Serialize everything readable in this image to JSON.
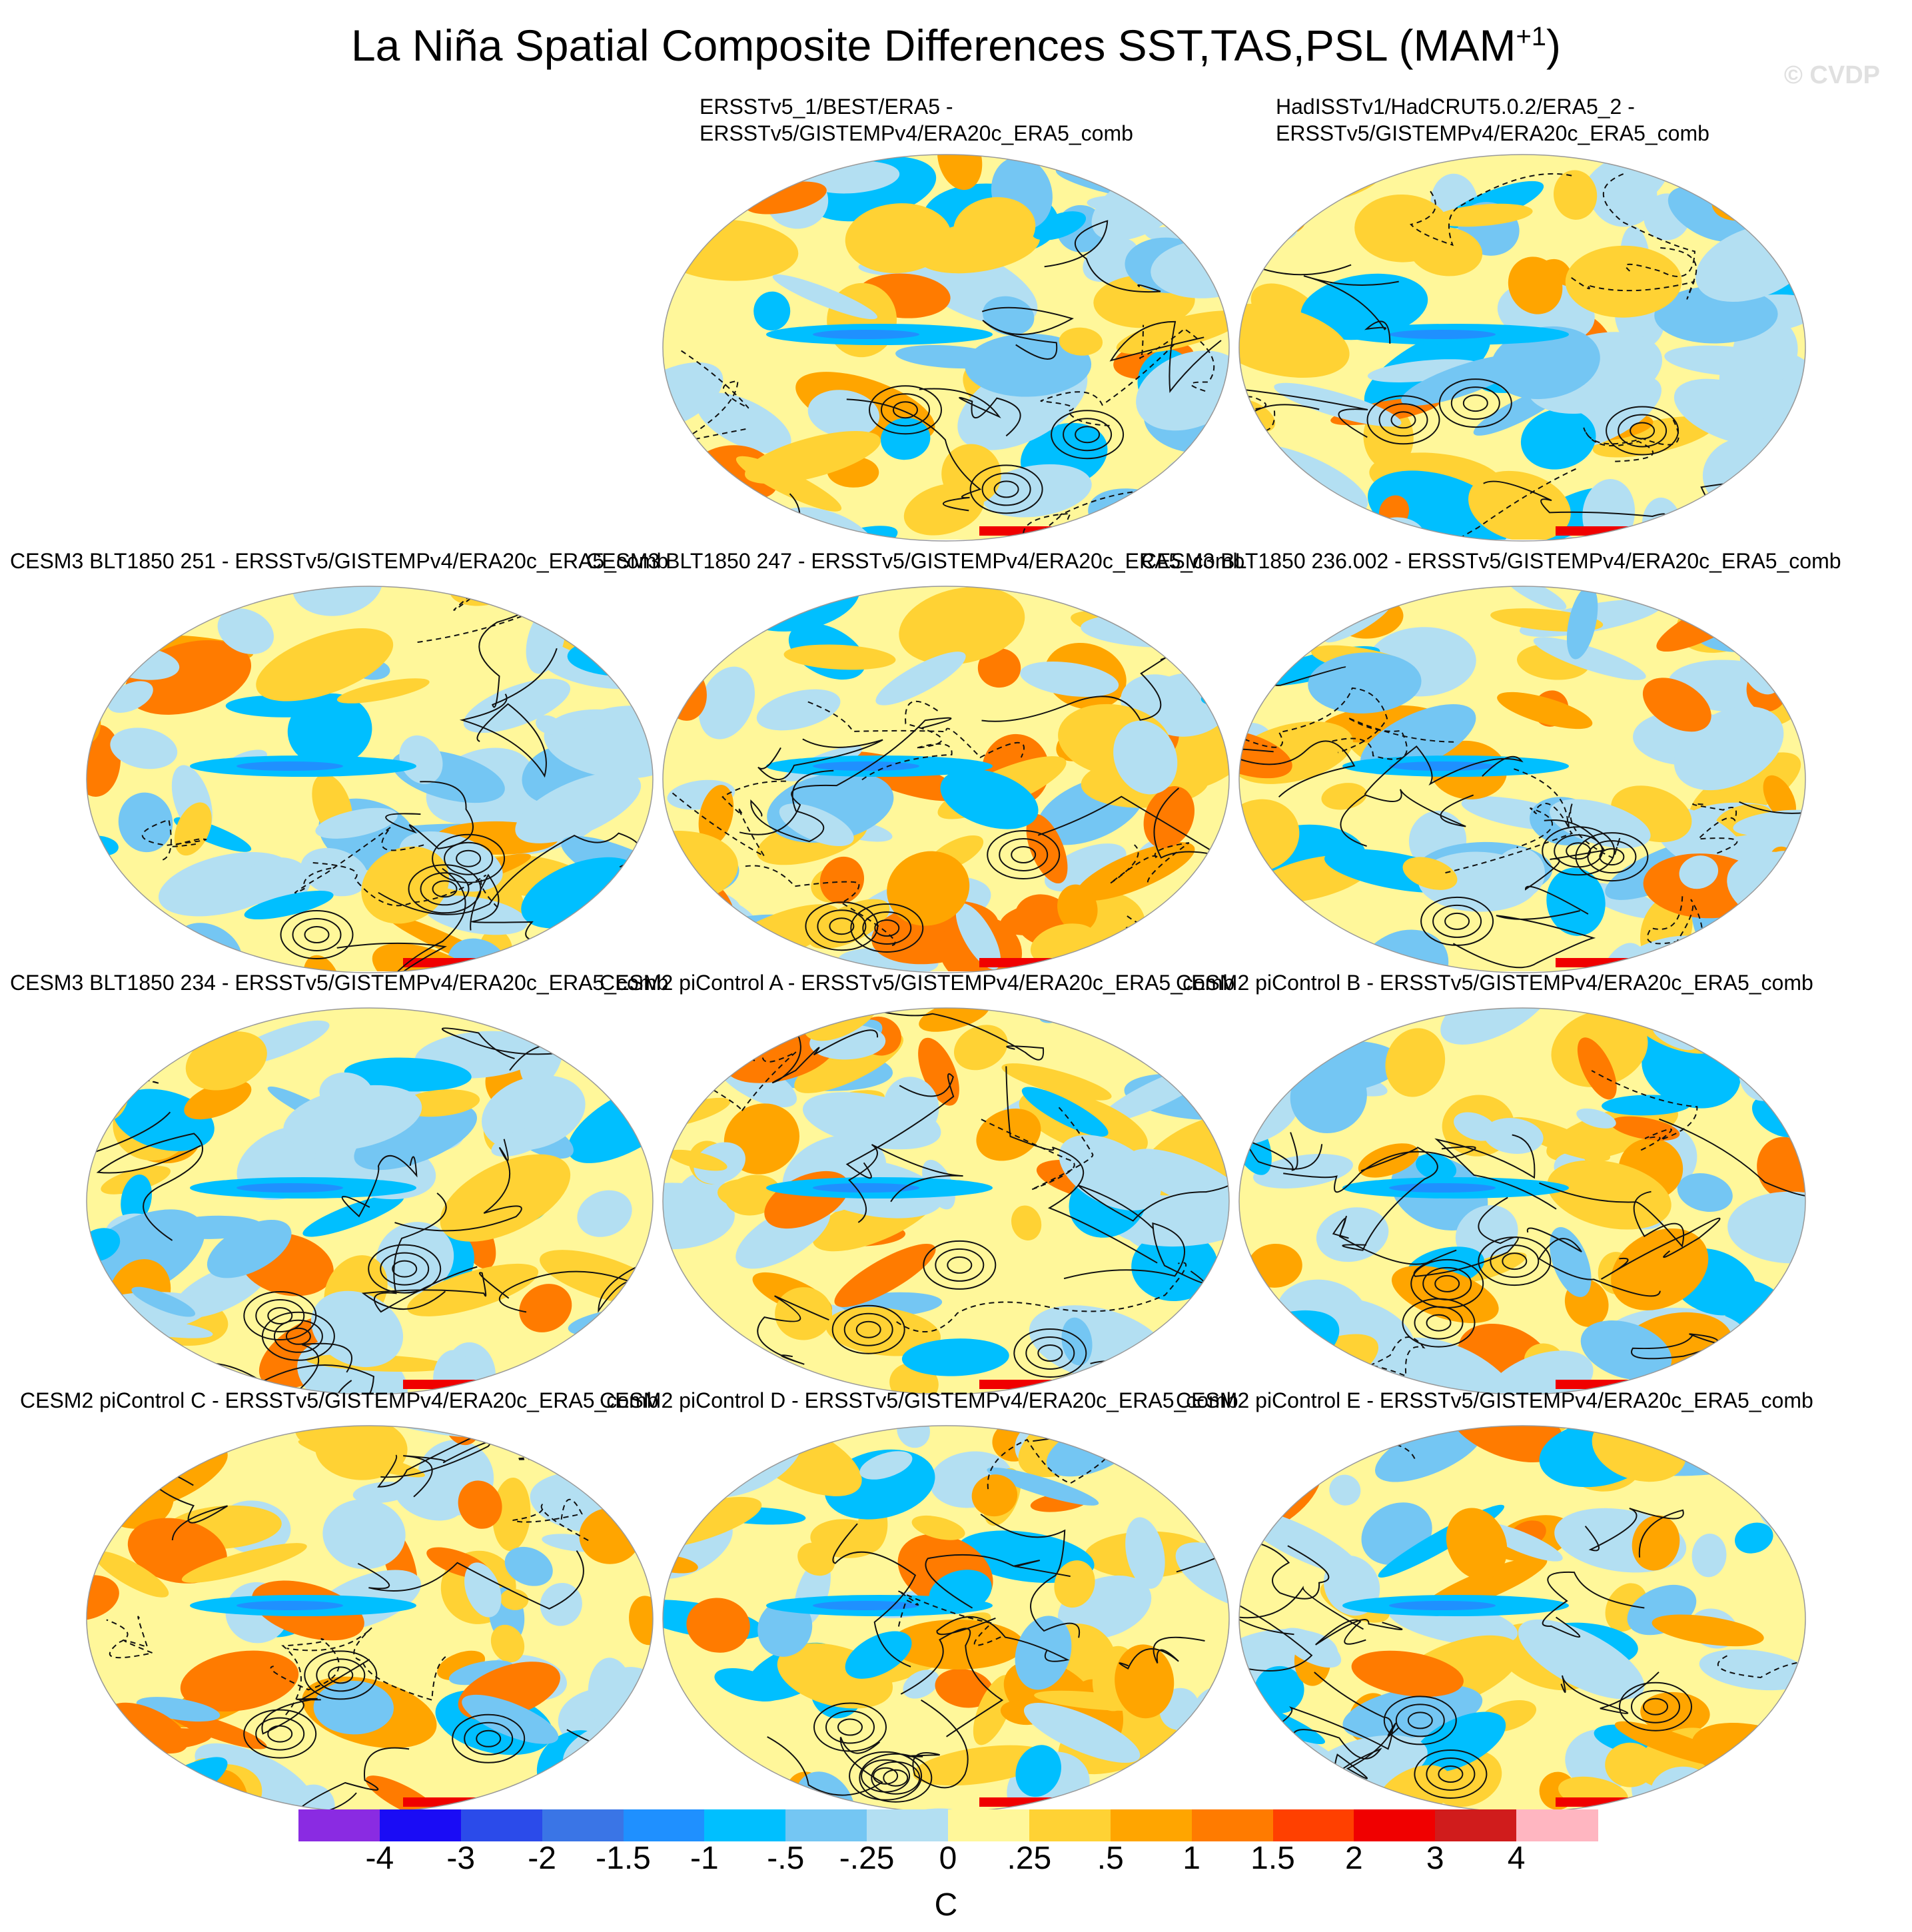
{
  "figure": {
    "title_main": "La Niña Spatial Composite Differences SST,TAS,PSL (MAM",
    "title_sup": "+1",
    "title_end": ")",
    "watermark": "© CVDP"
  },
  "panels": [
    {
      "line1": "ERSSTv5_1/BEST/ERA5 -",
      "line2": "ERSSTv5/GISTEMPv4/ERA20c_ERA5_comb"
    },
    {
      "line1": "HadISSTv1/HadCRUT5.0.2/ERA5_2 -",
      "line2": "ERSSTv5/GISTEMPv4/ERA20c_ERA5_comb"
    },
    {
      "line1": "CESM3 BLT1850 251 - ERSSTv5/GISTEMPv4/ERA20c_ERA5_comb"
    },
    {
      "line1": "CESM3 BLT1850 247 - ERSSTv5/GISTEMPv4/ERA20c_ERA5_comb"
    },
    {
      "line1": "CESM3 BLT1850 236.002 - ERSSTv5/GISTEMPv4/ERA20c_ERA5_comb"
    },
    {
      "line1": "CESM3 BLT1850 234 - ERSSTv5/GISTEMPv4/ERA20c_ERA5_comb"
    },
    {
      "line1": "CESM2 piControl A - ERSSTv5/GISTEMPv4/ERA20c_ERA5_comb"
    },
    {
      "line1": "CESM2 piControl B - ERSSTv5/GISTEMPv4/ERA20c_ERA5_comb"
    },
    {
      "line1": "CESM2 piControl C - ERSSTv5/GISTEMPv4/ERA20c_ERA5_comb"
    },
    {
      "line1": "CESM2 piControl D - ERSSTv5/GISTEMPv4/ERA20c_ERA5_comb"
    },
    {
      "line1": "CESM2 piControl E - ERSSTv5/GISTEMPv4/ERA20c_ERA5_comb"
    }
  ],
  "colorbar": {
    "unit": "C",
    "labels": [
      "-4",
      "-3",
      "-2",
      "-1.5",
      "-1",
      "-.5",
      "-.25",
      "0",
      ".25",
      ".5",
      "1",
      "1.5",
      "2",
      "3",
      "4"
    ],
    "colors": [
      "#8a2be2",
      "#1a0cf5",
      "#2b4bea",
      "#3a75e6",
      "#1f90ff",
      "#00bfff",
      "#74c6f3",
      "#b3dff2",
      "#fff79a",
      "#ffd234",
      "#ffa500",
      "#ff7b00",
      "#ff4000",
      "#f00000",
      "#d01c1c",
      "#ffb6c1"
    ]
  }
}
